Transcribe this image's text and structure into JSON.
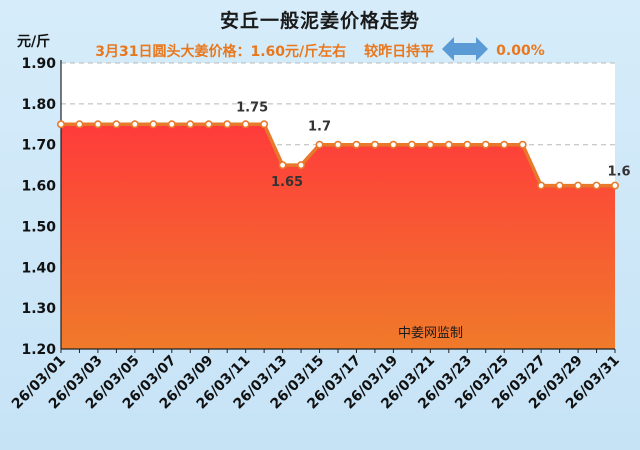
{
  "title": "安丘一般泥姜价格走势",
  "subtitle": {
    "lead": "3月31日圆头大姜价格：1.60元/斤左右",
    "compare": "较昨日持平",
    "change": "0.00%",
    "arrow_icon": "left-right-arrow-icon",
    "arrow_color": "#5b9bd5"
  },
  "watermark": "中姜网监制",
  "chart_data": {
    "type": "area",
    "title": "安丘一般泥姜价格走势",
    "ylabel": "元/斤",
    "xlabel": "",
    "ylim": [
      1.2,
      1.9
    ],
    "yticks": [
      "1.20",
      "1.30",
      "1.40",
      "1.50",
      "1.60",
      "1.70",
      "1.80",
      "1.90"
    ],
    "x": [
      "26/03/01",
      "26/03/02",
      "26/03/03",
      "26/03/04",
      "26/03/05",
      "26/03/06",
      "26/03/07",
      "26/03/08",
      "26/03/09",
      "26/03/10",
      "26/03/11",
      "26/03/12",
      "26/03/13",
      "26/03/14",
      "26/03/15",
      "26/03/16",
      "26/03/17",
      "26/03/18",
      "26/03/19",
      "26/03/20",
      "26/03/21",
      "26/03/22",
      "26/03/23",
      "26/03/24",
      "26/03/25",
      "26/03/26",
      "26/03/27",
      "26/03/28",
      "26/03/29",
      "26/03/30",
      "26/03/31"
    ],
    "xtick_labels": [
      "26/03/01",
      "26/03/03",
      "26/03/05",
      "26/03/07",
      "26/03/09",
      "26/03/11",
      "26/03/13",
      "26/03/15",
      "26/03/17",
      "26/03/19",
      "26/03/21",
      "26/03/23",
      "26/03/25",
      "26/03/27",
      "26/03/29",
      "26/03/31"
    ],
    "values": [
      1.75,
      1.75,
      1.75,
      1.75,
      1.75,
      1.75,
      1.75,
      1.75,
      1.75,
      1.75,
      1.75,
      1.75,
      1.65,
      1.65,
      1.7,
      1.7,
      1.7,
      1.7,
      1.7,
      1.7,
      1.7,
      1.7,
      1.7,
      1.7,
      1.7,
      1.7,
      1.6,
      1.6,
      1.6,
      1.6,
      1.6
    ],
    "data_labels": [
      {
        "index": 11,
        "text": "1.75"
      },
      {
        "index": 13,
        "text": "1.65"
      },
      {
        "index": 14,
        "text": "1.7"
      },
      {
        "index": 30,
        "text": "1.6"
      }
    ],
    "grid": true,
    "line_color": "#e8792b",
    "fill_top_color": "#ff3b3b",
    "fill_bottom_color": "#f07a2a"
  }
}
